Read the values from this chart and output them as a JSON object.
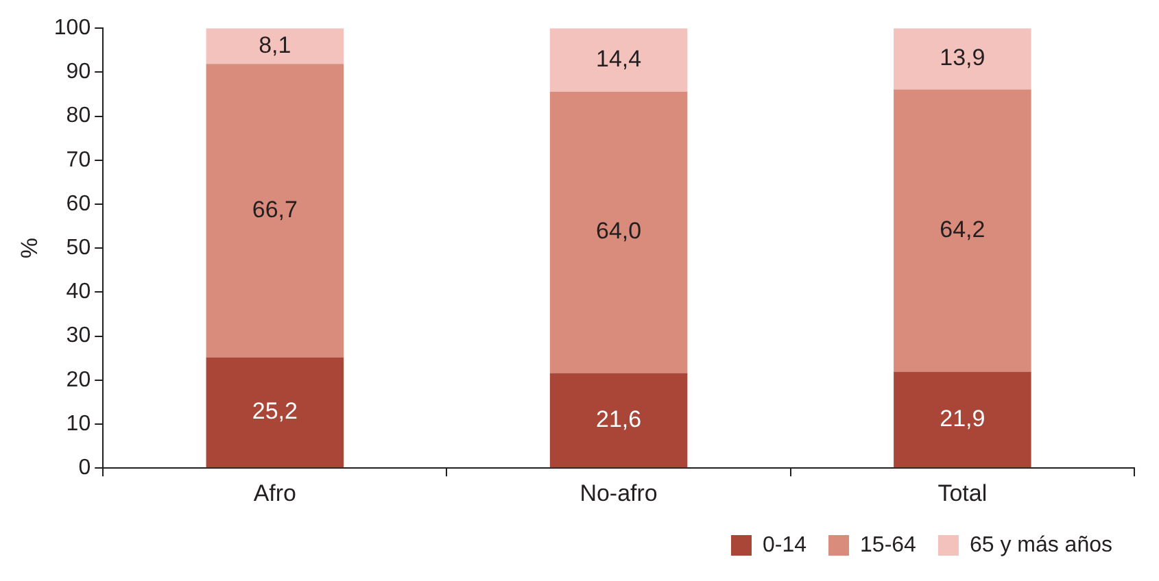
{
  "chart_data": {
    "type": "bar",
    "stacked": true,
    "ylabel": "%",
    "categories": [
      "Afro",
      "No-afro",
      "Total"
    ],
    "series": [
      {
        "name": "0-14",
        "color": "#a94638",
        "values": [
          25.2,
          21.6,
          21.9
        ],
        "value_labels": [
          "25,2",
          "21,6",
          "21,9"
        ]
      },
      {
        "name": "15-64",
        "color": "#d98b7c",
        "values": [
          66.7,
          64.0,
          64.2
        ],
        "value_labels": [
          "66,7",
          "64,0",
          "64,2"
        ]
      },
      {
        "name": "65 y más años",
        "color": "#f4c2bc",
        "values": [
          8.1,
          14.4,
          13.9
        ],
        "value_labels": [
          "8,1",
          "14,4",
          "13,9"
        ]
      }
    ],
    "ylim": [
      0,
      100
    ],
    "yticks": [
      0,
      10,
      20,
      30,
      40,
      50,
      60,
      70,
      80,
      90,
      100
    ],
    "grid": false,
    "legend": "bottom right"
  }
}
